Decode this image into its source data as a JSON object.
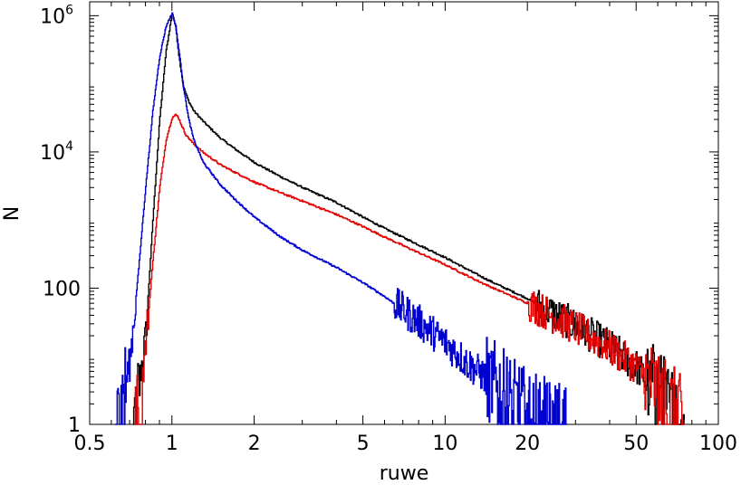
{
  "chart_data": {
    "type": "line",
    "xlabel": "ruwe",
    "ylabel": "N",
    "xscale": "log",
    "yscale": "log",
    "xlim": [
      0.5,
      100
    ],
    "ylim": [
      1,
      1600000
    ],
    "x_ticks": [
      {
        "value": 0.5,
        "label": "0.5"
      },
      {
        "value": 1,
        "label": "1"
      },
      {
        "value": 2,
        "label": "2"
      },
      {
        "value": 5,
        "label": "5"
      },
      {
        "value": 10,
        "label": "10"
      },
      {
        "value": 20,
        "label": "20"
      },
      {
        "value": 50,
        "label": "50"
      },
      {
        "value": 100,
        "label": "100"
      }
    ],
    "y_ticks": [
      {
        "value": 1,
        "label": "1",
        "exp": ""
      },
      {
        "value": 100,
        "label": "100",
        "exp": ""
      },
      {
        "value": 10000,
        "label": "10",
        "exp": "4"
      },
      {
        "value": 1000000,
        "label": "10",
        "exp": "6"
      }
    ],
    "grid": false,
    "series": [
      {
        "color": "#000000",
        "x": [
          0.72,
          0.75,
          0.8,
          0.85,
          0.9,
          0.95,
          1.0,
          1.03,
          1.06,
          1.1,
          1.15,
          1.2,
          1.3,
          1.5,
          1.7,
          2.0,
          2.5,
          3.0,
          4.0,
          5.0,
          6.0,
          8.0,
          10.0,
          13.0,
          15.0,
          20.0,
          25.0,
          30.0,
          40.0,
          50.0,
          60.0,
          70.0,
          75.0
        ],
        "y": [
          1,
          3,
          20,
          1000,
          30000,
          300000,
          1100000,
          700000,
          250000,
          90000,
          55000,
          40000,
          28000,
          16000,
          11000,
          7000,
          4300,
          3000,
          1800,
          1100,
          750,
          430,
          280,
          160,
          120,
          70,
          42,
          28,
          14,
          7,
          3,
          1.5,
          1
        ]
      },
      {
        "color": "#e00000",
        "x": [
          0.73,
          0.76,
          0.8,
          0.85,
          0.9,
          0.95,
          1.0,
          1.03,
          1.05,
          1.08,
          1.12,
          1.2,
          1.3,
          1.5,
          1.7,
          2.0,
          2.5,
          3.0,
          4.0,
          5.0,
          6.0,
          8.0,
          10.0,
          13.0,
          15.0,
          20.0,
          25.0,
          30.0,
          40.0,
          50.0,
          60.0,
          70.0,
          75.0
        ],
        "y": [
          1,
          2,
          15,
          250,
          3000,
          15000,
          32000,
          35000,
          33000,
          25000,
          18000,
          13000,
          9800,
          6500,
          5000,
          3600,
          2500,
          1900,
          1200,
          800,
          560,
          330,
          220,
          130,
          100,
          60,
          38,
          26,
          13,
          7,
          3,
          1.5,
          1
        ]
      },
      {
        "color": "#0000d0",
        "x": [
          0.62,
          0.65,
          0.7,
          0.75,
          0.8,
          0.85,
          0.9,
          0.95,
          1.0,
          1.03,
          1.06,
          1.1,
          1.15,
          1.2,
          1.3,
          1.5,
          1.7,
          2.0,
          2.5,
          3.0,
          4.0,
          5.0,
          6.0,
          7.0,
          8.0,
          10.0,
          12.0,
          15.0,
          18.0,
          20.0,
          22.0,
          25.0,
          28.0
        ],
        "y": [
          1,
          2,
          8,
          150,
          3000,
          40000,
          250000,
          700000,
          1100000,
          700000,
          300000,
          90000,
          30000,
          15000,
          7000,
          3300,
          2000,
          1100,
          560,
          360,
          200,
          120,
          75,
          48,
          32,
          16,
          8,
          4,
          2,
          1.5,
          1.2,
          1,
          1
        ]
      }
    ]
  }
}
